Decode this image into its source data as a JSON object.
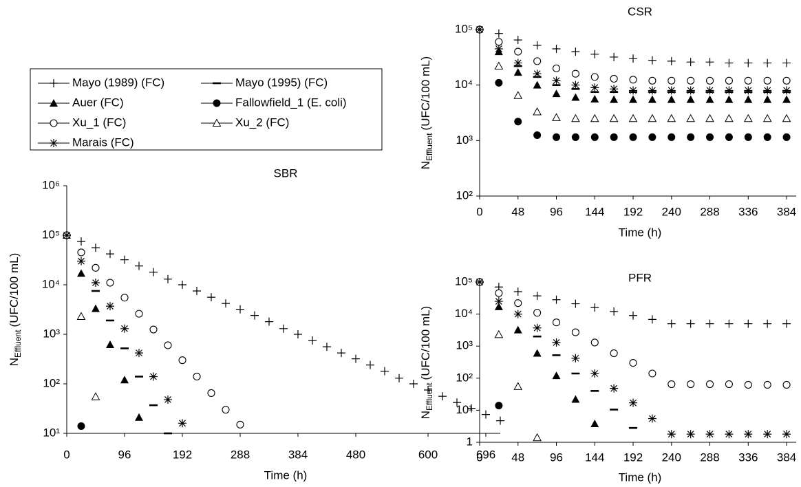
{
  "chart_data": [
    {
      "type": "scatter",
      "title": "SBR",
      "xlabel": "Time (h)",
      "ylabel": [
        "N",
        "Effluent",
        "(UFC/100 mL)"
      ],
      "ylog": true,
      "grid": false,
      "xlim": [
        0,
        720
      ],
      "xticks": [
        0,
        96,
        192,
        288,
        384,
        480,
        600,
        696
      ],
      "ylim": [
        10,
        1000000
      ],
      "yticks": [
        {
          "value": 10,
          "label": "10¹"
        },
        {
          "value": 100,
          "label": "10²"
        },
        {
          "value": 1000,
          "label": "10³"
        },
        {
          "value": 10000,
          "label": "10⁴"
        },
        {
          "value": 100000,
          "label": "10⁵"
        },
        {
          "value": 1000000,
          "label": "10⁶"
        }
      ],
      "series": [
        {
          "name": "Mayo (1989) (FC)",
          "marker": "plus",
          "color": "#000000",
          "x": [
            0,
            24,
            48,
            72,
            96,
            120,
            144,
            168,
            192,
            216,
            240,
            264,
            288,
            312,
            336,
            360,
            384,
            408,
            432,
            456,
            480,
            504,
            528,
            552,
            576,
            600,
            624,
            648,
            672,
            696,
            720
          ],
          "values": [
            100000,
            75000,
            56000,
            42000,
            32000,
            24000,
            18000,
            13000,
            10000,
            7500,
            5600,
            4200,
            3200,
            2400,
            1800,
            1300,
            1000,
            750,
            560,
            420,
            320,
            240,
            180,
            130,
            100,
            75,
            56,
            42,
            32,
            24,
            18
          ]
        },
        {
          "name": "Mayo (1995) (FC)",
          "marker": "dash",
          "color": "#000000",
          "x": [
            48,
            72,
            96,
            120,
            144,
            168
          ],
          "values": [
            7500,
            1900,
            520,
            140,
            37,
            10
          ]
        },
        {
          "name": "Auer (FC)",
          "marker": "triangle-filled",
          "color": "#000000",
          "x": [
            0,
            24,
            48,
            72,
            96,
            120
          ],
          "values": [
            100000,
            17000,
            3300,
            620,
            120,
            21
          ]
        },
        {
          "name": "Fallowfield_1 (E. coli)",
          "marker": "circle-filled",
          "color": "#000000",
          "x": [
            0,
            24
          ],
          "values": [
            100000,
            14
          ]
        },
        {
          "name": "Xu_1 (FC)",
          "marker": "circle-open",
          "color": "#000000",
          "x": [
            0,
            24,
            48,
            72,
            96,
            120,
            144,
            168,
            192,
            216,
            240,
            264,
            288
          ],
          "values": [
            100000,
            45000,
            22000,
            11000,
            5500,
            2600,
            1250,
            600,
            300,
            140,
            65,
            30,
            15
          ]
        },
        {
          "name": "Xu_2 (FC)",
          "marker": "triangle-open",
          "color": "#000000",
          "x": [
            24,
            48
          ],
          "values": [
            2300,
            55
          ]
        },
        {
          "name": "Marais (FC)",
          "marker": "asterisk",
          "color": "#000000",
          "x": [
            0,
            24,
            48,
            72,
            96,
            120,
            144,
            168,
            192
          ],
          "values": [
            100000,
            30000,
            11000,
            3700,
            1300,
            420,
            140,
            48,
            16
          ]
        }
      ]
    },
    {
      "type": "scatter",
      "title": "CSR",
      "xlabel": "Time (h)",
      "ylabel": [
        "N",
        "Effluent",
        "(UFC/100 mL)"
      ],
      "ylog": true,
      "grid": false,
      "xlim": [
        0,
        396
      ],
      "xticks": [
        0,
        48,
        96,
        144,
        192,
        240,
        288,
        336,
        384
      ],
      "ylim": [
        100,
        100000
      ],
      "yticks": [
        {
          "value": 100,
          "label": "10²"
        },
        {
          "value": 1000,
          "label": "10³"
        },
        {
          "value": 10000,
          "label": "10⁴"
        },
        {
          "value": 100000,
          "label": "10⁵"
        }
      ],
      "series": [
        {
          "marker": "plus",
          "color": "#000000",
          "x": [
            0,
            24,
            48,
            72,
            96,
            120,
            144,
            168,
            192,
            216,
            240,
            264,
            288,
            312,
            336,
            360,
            384
          ],
          "values": [
            100000,
            85000,
            65000,
            52000,
            45000,
            40000,
            36000,
            32000,
            30000,
            28000,
            27000,
            26000,
            26000,
            25000,
            25000,
            25000,
            25000
          ]
        },
        {
          "marker": "dash",
          "color": "#000000",
          "x": [
            48,
            72,
            96,
            120,
            144,
            168,
            192,
            216,
            240,
            264,
            288,
            312,
            336,
            360,
            384
          ],
          "values": [
            22000,
            14000,
            10000,
            8500,
            7500,
            7500,
            7500,
            7500,
            7500,
            7500,
            7500,
            7500,
            7500,
            7500,
            7500
          ]
        },
        {
          "marker": "triangle-filled",
          "color": "#000000",
          "x": [
            24,
            48,
            72,
            96,
            120,
            144,
            168,
            192,
            216,
            240,
            264,
            288,
            312,
            336,
            360,
            384
          ],
          "values": [
            40000,
            17000,
            10000,
            7000,
            6000,
            5600,
            5500,
            5500,
            5500,
            5500,
            5500,
            5500,
            5500,
            5500,
            5500,
            5500
          ]
        },
        {
          "marker": "circle-filled",
          "color": "#000000",
          "x": [
            0,
            24,
            48,
            72,
            96,
            120,
            144,
            168,
            192,
            216,
            240,
            264,
            288,
            312,
            336,
            360,
            384
          ],
          "values": [
            100000,
            11000,
            2200,
            1250,
            1150,
            1150,
            1150,
            1150,
            1150,
            1150,
            1150,
            1150,
            1150,
            1150,
            1150,
            1150,
            1150
          ]
        },
        {
          "marker": "circle-open",
          "color": "#000000",
          "x": [
            0,
            24,
            48,
            72,
            96,
            120,
            144,
            168,
            192,
            216,
            240,
            264,
            288,
            312,
            336,
            360,
            384
          ],
          "values": [
            100000,
            60000,
            40000,
            27000,
            20000,
            16000,
            14000,
            13000,
            12500,
            12000,
            12000,
            12000,
            12000,
            12000,
            12000,
            12000,
            12000
          ]
        },
        {
          "marker": "triangle-open",
          "color": "#000000",
          "x": [
            24,
            48,
            72,
            96,
            120,
            144,
            168,
            192,
            216,
            240,
            264,
            288,
            312,
            336,
            360,
            384
          ],
          "values": [
            22000,
            6500,
            3300,
            2600,
            2500,
            2500,
            2500,
            2500,
            2500,
            2500,
            2500,
            2500,
            2500,
            2500,
            2500,
            2500
          ]
        },
        {
          "marker": "asterisk",
          "color": "#000000",
          "x": [
            0,
            24,
            48,
            72,
            96,
            120,
            144,
            168,
            192,
            216,
            240,
            264,
            288,
            312,
            336,
            360,
            384
          ],
          "values": [
            100000,
            45000,
            25000,
            16000,
            12000,
            10000,
            9000,
            8500,
            8000,
            8000,
            8000,
            8000,
            8000,
            8000,
            8000,
            8000,
            8000
          ]
        }
      ]
    },
    {
      "type": "scatter",
      "title": "PFR",
      "xlabel": "Time (h)",
      "ylabel": [
        "N",
        "Effluent",
        "(UFC/100 mL)"
      ],
      "ylog": true,
      "grid": false,
      "xlim": [
        0,
        396
      ],
      "xticks": [
        0,
        48,
        96,
        144,
        192,
        240,
        288,
        336,
        384
      ],
      "ylim": [
        1,
        100000
      ],
      "yticks": [
        1,
        {
          "value": 10,
          "label": "10¹"
        },
        {
          "value": 100,
          "label": "10²"
        },
        {
          "value": 1000,
          "label": "10³"
        },
        {
          "value": 10000,
          "label": "10⁴"
        },
        {
          "value": 100000,
          "label": "10⁵"
        }
      ],
      "series": [
        {
          "marker": "plus",
          "color": "#000000",
          "x": [
            0,
            24,
            48,
            72,
            96,
            120,
            144,
            168,
            192,
            216,
            240,
            264,
            288,
            312,
            336,
            360,
            384
          ],
          "values": [
            100000,
            70000,
            50000,
            37000,
            28000,
            21000,
            16000,
            12000,
            9000,
            6800,
            5000,
            5000,
            5000,
            5000,
            5000,
            5000,
            5000
          ]
        },
        {
          "marker": "dash",
          "color": "#000000",
          "x": [
            72,
            96,
            120,
            144,
            168,
            192
          ],
          "values": [
            2000,
            520,
            140,
            40,
            10.5,
            2.8
          ]
        },
        {
          "marker": "triangle-filled",
          "color": "#000000",
          "x": [
            24,
            48,
            72,
            96,
            120,
            144
          ],
          "values": [
            17000,
            3200,
            600,
            120,
            22,
            3.8
          ]
        },
        {
          "marker": "circle-filled",
          "color": "#000000",
          "x": [
            0,
            24
          ],
          "values": [
            100000,
            14
          ]
        },
        {
          "marker": "circle-open",
          "color": "#000000",
          "x": [
            0,
            24,
            48,
            72,
            96,
            120,
            144,
            168,
            192,
            216,
            240,
            264,
            288,
            312,
            336,
            360,
            384
          ],
          "values": [
            100000,
            45000,
            22000,
            11000,
            5500,
            2700,
            1300,
            600,
            300,
            140,
            65,
            65,
            65,
            65,
            62,
            62,
            62
          ]
        },
        {
          "marker": "triangle-open",
          "color": "#000000",
          "x": [
            24,
            48,
            72
          ],
          "values": [
            2300,
            55,
            1.4
          ]
        },
        {
          "marker": "asterisk",
          "color": "#000000",
          "x": [
            0,
            24,
            48,
            72,
            96,
            120,
            144,
            168,
            192,
            216,
            240,
            264,
            288,
            312,
            336,
            360,
            384
          ],
          "values": [
            100000,
            25000,
            10000,
            3700,
            1300,
            420,
            140,
            48,
            17,
            5.5,
            1.8,
            1.8,
            1.8,
            1.8,
            1.8,
            1.8,
            1.8
          ]
        }
      ]
    }
  ]
}
